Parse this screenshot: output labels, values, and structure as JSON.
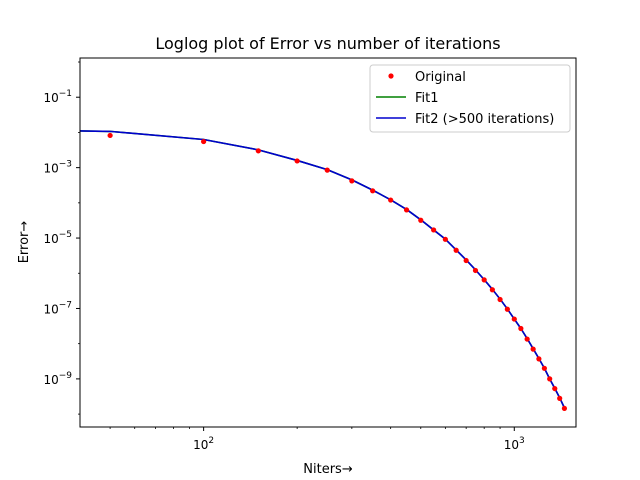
{
  "chart_data": {
    "type": "line",
    "title": "Loglog plot of Error vs number of iterations",
    "xlabel": "Niters→",
    "ylabel": "Error→",
    "xscale": "log",
    "yscale": "log",
    "xlim": [
      40,
      1580
    ],
    "ylim": [
      4.3e-11,
      1.3
    ],
    "xticks": [
      {
        "value": 100,
        "base": "10",
        "exp": "2"
      },
      {
        "value": 1000,
        "base": "10",
        "exp": "3"
      }
    ],
    "yticks": [
      {
        "value": 0.1,
        "base": "10",
        "exp": "−1"
      },
      {
        "value": 0.001,
        "base": "10",
        "exp": "−3"
      },
      {
        "value": 1e-05,
        "base": "10",
        "exp": "−5"
      },
      {
        "value": 1e-07,
        "base": "10",
        "exp": "−7"
      },
      {
        "value": 1e-09,
        "base": "10",
        "exp": "−9"
      }
    ],
    "grid": false,
    "legend_position": "top-right",
    "series": [
      {
        "name": "Original",
        "style": "marker",
        "color": "#ff0000",
        "x": [
          50,
          100,
          150,
          200,
          250,
          300,
          350,
          400,
          450,
          500,
          550,
          600,
          650,
          700,
          750,
          800,
          850,
          900,
          950,
          1000,
          1050,
          1100,
          1150,
          1200,
          1250,
          1300,
          1350,
          1400,
          1450
        ],
        "y": [
          0.0082,
          0.0055,
          0.003,
          0.00155,
          0.00085,
          0.00042,
          0.00022,
          0.00012,
          6.3e-05,
          3.2e-05,
          1.7e-05,
          9.2e-06,
          4.5e-06,
          2.3e-06,
          1.2e-06,
          6.5e-07,
          3.4e-07,
          1.8e-07,
          9.5e-08,
          5e-08,
          2.7e-08,
          1.35e-08,
          7e-09,
          3.7e-09,
          2e-09,
          1e-09,
          5.3e-10,
          2.8e-10,
          1.45e-10
        ]
      },
      {
        "name": "Fit1",
        "style": "line",
        "color": "#008000",
        "x": [
          40,
          50,
          100,
          150,
          200,
          250,
          300,
          350,
          400,
          450,
          500,
          550,
          600,
          650,
          700,
          750,
          800,
          850,
          900,
          950,
          1000,
          1050,
          1100,
          1150,
          1200,
          1250,
          1300,
          1350,
          1400,
          1450
        ],
        "y": [
          0.011,
          0.0107,
          0.0063,
          0.0032,
          0.0016,
          0.00088,
          0.00045,
          0.00023,
          0.000122,
          6.5e-05,
          3.3e-05,
          1.7e-05,
          9.3e-06,
          4.6e-06,
          2.4e-06,
          1.25e-06,
          6.6e-07,
          3.5e-07,
          1.85e-07,
          9.7e-08,
          5e-08,
          2.7e-08,
          1.4e-08,
          7.2e-09,
          3.8e-09,
          2e-09,
          1e-09,
          5.4e-10,
          2.9e-10,
          1.5e-10
        ]
      },
      {
        "name": "Fit2 (>500 iterations)",
        "style": "line",
        "color": "#0000cd",
        "x": [
          40,
          50,
          100,
          150,
          200,
          250,
          300,
          350,
          400,
          450,
          500,
          550,
          600,
          650,
          700,
          750,
          800,
          850,
          900,
          950,
          1000,
          1050,
          1100,
          1150,
          1200,
          1250,
          1300,
          1350,
          1400,
          1450
        ],
        "y": [
          0.011,
          0.0107,
          0.0063,
          0.0032,
          0.0016,
          0.00088,
          0.00045,
          0.00023,
          0.000122,
          6.5e-05,
          3.3e-05,
          1.7e-05,
          9.3e-06,
          4.6e-06,
          2.4e-06,
          1.25e-06,
          6.6e-07,
          3.5e-07,
          1.85e-07,
          9.7e-08,
          5e-08,
          2.7e-08,
          1.4e-08,
          7.2e-09,
          3.8e-09,
          2e-09,
          1e-09,
          5.4e-10,
          2.9e-10,
          1.5e-10
        ]
      }
    ]
  }
}
